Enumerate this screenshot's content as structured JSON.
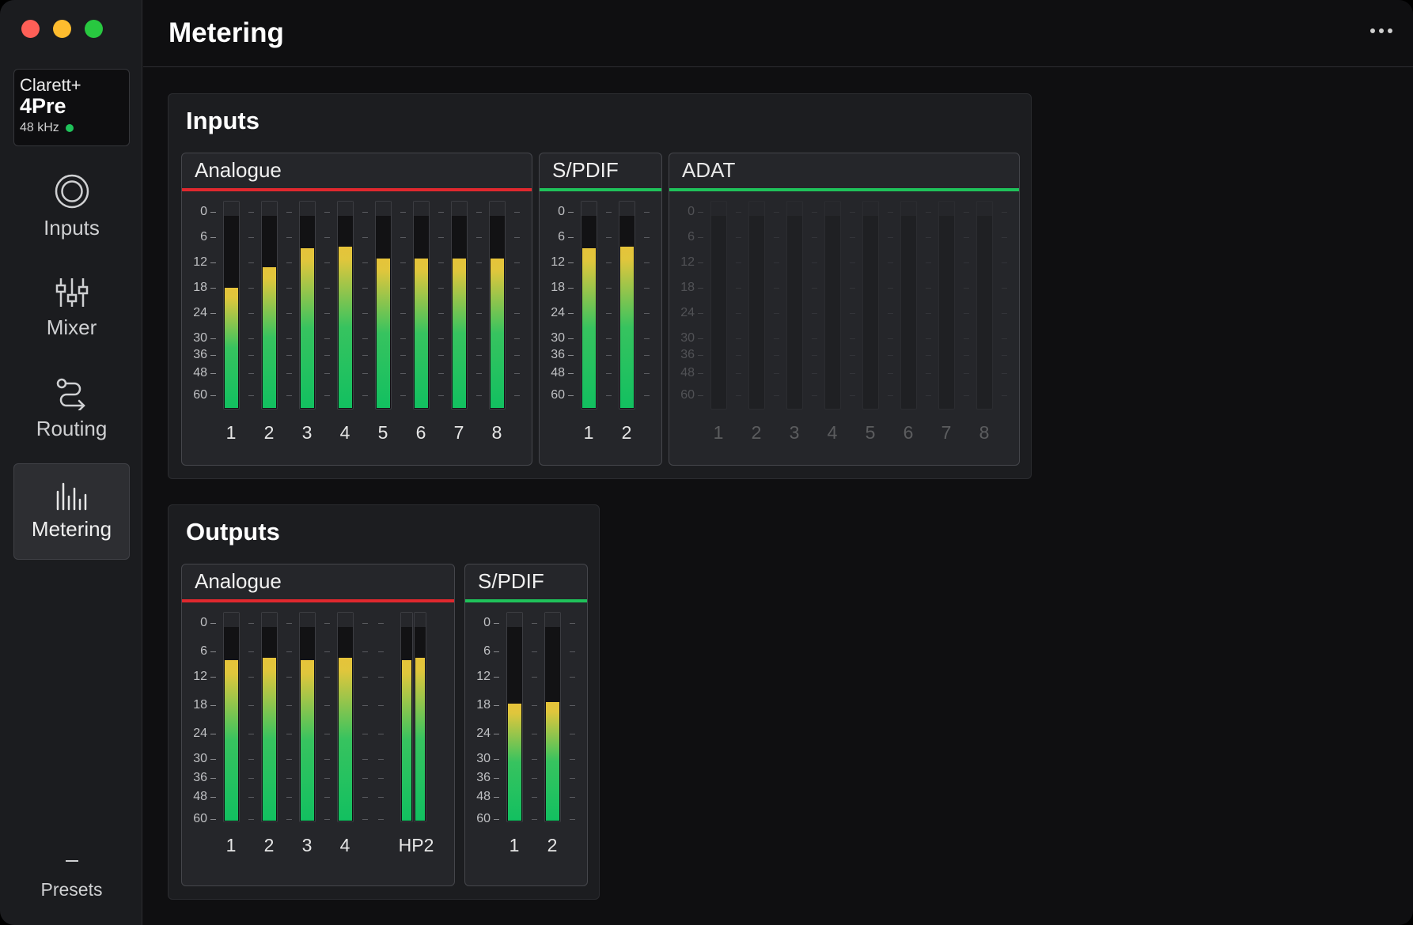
{
  "window": {
    "controls": [
      "close",
      "minimize",
      "zoom"
    ]
  },
  "device": {
    "brand": "Clarett+",
    "model": "4Pre",
    "sample_rate": "48 kHz",
    "status_color": "#1fc25a"
  },
  "nav": {
    "inputs": "Inputs",
    "mixer": "Mixer",
    "routing": "Routing",
    "metering": "Metering",
    "presets": "Presets"
  },
  "header": {
    "title": "Metering"
  },
  "scale": [
    "0",
    "6",
    "12",
    "18",
    "24",
    "30",
    "36",
    "48",
    "60"
  ],
  "inputs": {
    "title": "Inputs",
    "groups": [
      {
        "name": "Analogue",
        "accent": "#e0282e",
        "disabled": false,
        "channels": [
          {
            "label": "1",
            "level": 0.58
          },
          {
            "label": "2",
            "level": 0.68
          },
          {
            "label": "3",
            "level": 0.77
          },
          {
            "label": "4",
            "level": 0.78
          },
          {
            "label": "5",
            "level": 0.72
          },
          {
            "label": "6",
            "level": 0.72
          },
          {
            "label": "7",
            "level": 0.72
          },
          {
            "label": "8",
            "level": 0.72
          }
        ]
      },
      {
        "name": "S/PDIF",
        "accent": "#1fc25a",
        "disabled": false,
        "channels": [
          {
            "label": "1",
            "level": 0.77
          },
          {
            "label": "2",
            "level": 0.78
          }
        ]
      },
      {
        "name": "ADAT",
        "accent": "#1fc25a",
        "disabled": true,
        "channels": [
          {
            "label": "1",
            "level": 0
          },
          {
            "label": "2",
            "level": 0
          },
          {
            "label": "3",
            "level": 0
          },
          {
            "label": "4",
            "level": 0
          },
          {
            "label": "5",
            "level": 0
          },
          {
            "label": "6",
            "level": 0
          },
          {
            "label": "7",
            "level": 0
          },
          {
            "label": "8",
            "level": 0
          }
        ]
      }
    ]
  },
  "outputs": {
    "title": "Outputs",
    "groups": [
      {
        "name": "Analogue",
        "accent": "#e0282e",
        "disabled": false,
        "channels": [
          {
            "label": "1",
            "level": 0.77
          },
          {
            "label": "2",
            "level": 0.78
          },
          {
            "label": "3",
            "level": 0.77
          },
          {
            "label": "4",
            "level": 0.78
          },
          {
            "label": "HP2",
            "level": 0.77,
            "stereo": true,
            "level_r": 0.78
          }
        ]
      },
      {
        "name": "S/PDIF",
        "accent": "#1fc25a",
        "disabled": false,
        "channels": [
          {
            "label": "1",
            "level": 0.56
          },
          {
            "label": "2",
            "level": 0.57
          }
        ]
      }
    ]
  }
}
